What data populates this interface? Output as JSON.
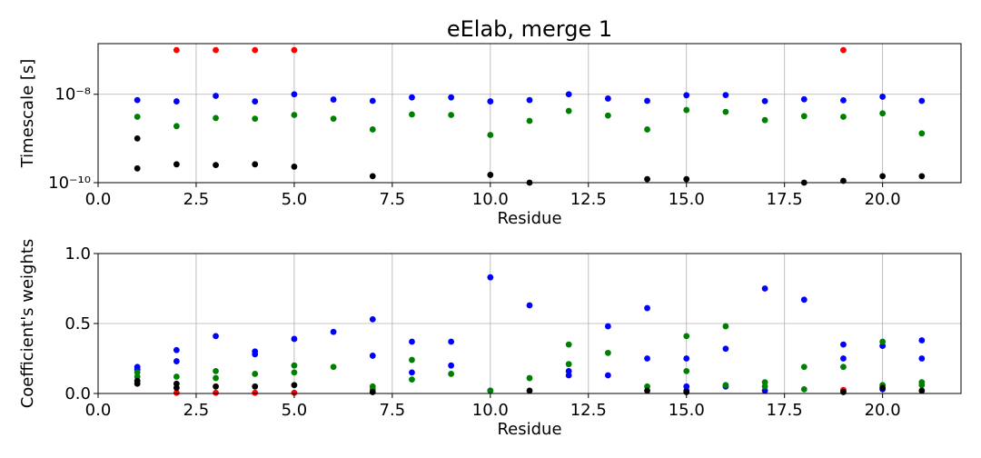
{
  "figure_title": "eElab, merge 1",
  "colors": {
    "red": "#ff0000",
    "blue": "#0000ff",
    "green": "#008000",
    "black": "#000000",
    "grid": "#b0b0b0"
  },
  "chart_data": [
    {
      "type": "scatter",
      "title": "eElab, merge 1",
      "xlabel": "Residue",
      "ylabel": "Timescale [s]",
      "xlim": [
        0,
        22
      ],
      "ylim": [
        1e-10,
        1.4e-07
      ],
      "yscale": "log",
      "grid": true,
      "xticks": [
        0.0,
        2.5,
        5.0,
        7.5,
        10.0,
        12.5,
        15.0,
        17.5,
        20.0
      ],
      "xtick_labels": [
        "0.0",
        "2.5",
        "5.0",
        "7.5",
        "10.0",
        "12.5",
        "15.0",
        "17.5",
        "20.0"
      ],
      "yticks": [
        1e-10,
        1e-08
      ],
      "ytick_labels": [
        "10⁻¹⁰",
        "10⁻⁸"
      ],
      "series": [
        {
          "color": "red",
          "x": [
            2,
            3,
            4,
            5,
            19
          ],
          "y": [
            1e-07,
            1e-07,
            1e-07,
            1e-07,
            1e-07
          ]
        },
        {
          "color": "blue",
          "x": [
            1,
            2,
            3,
            4,
            5,
            6,
            7,
            8,
            9,
            10,
            11,
            12,
            13,
            14,
            15,
            16,
            17,
            18,
            19,
            20,
            21
          ],
          "y": [
            7.4e-09,
            6.9e-09,
            9.2e-09,
            6.9e-09,
            1e-08,
            7.6e-09,
            7.1e-09,
            8.5e-09,
            8.5e-09,
            6.9e-09,
            7.4e-09,
            1e-08,
            8e-09,
            7.1e-09,
            9.5e-09,
            9.6e-09,
            7e-09,
            7.7e-09,
            7.3e-09,
            8.8e-09,
            7.1e-09
          ]
        },
        {
          "color": "green",
          "x": [
            1,
            2,
            3,
            4,
            5,
            6,
            7,
            8,
            9,
            10,
            11,
            12,
            13,
            14,
            15,
            16,
            17,
            18,
            19,
            20,
            21
          ],
          "y": [
            3.1e-09,
            1.9e-09,
            2.9e-09,
            2.8e-09,
            3.4e-09,
            2.8e-09,
            1.6e-09,
            3.5e-09,
            3.4e-09,
            1.2e-09,
            2.5e-09,
            4.2e-09,
            3.3e-09,
            1.6e-09,
            4.4e-09,
            4e-09,
            2.6e-09,
            3.2e-09,
            3.1e-09,
            3.7e-09,
            1.3e-09
          ]
        },
        {
          "color": "black",
          "x": [
            1,
            2,
            3,
            4,
            5,
            7,
            10,
            11,
            14,
            15,
            18,
            19,
            20,
            21
          ],
          "y": [
            2.1e-10,
            2.6e-10,
            2.5e-10,
            2.6e-10,
            2.3e-10,
            1.4e-10,
            1.5e-10,
            1e-10,
            1.2e-10,
            1.2e-10,
            1e-10,
            1.1e-10,
            1.4e-10,
            1.4e-10
          ]
        },
        {
          "color": "black",
          "x": [
            1
          ],
          "y": [
            1e-09
          ]
        }
      ]
    },
    {
      "type": "scatter",
      "title": "",
      "xlabel": "Residue",
      "ylabel": "Coefficient's weights",
      "xlim": [
        0,
        22
      ],
      "ylim": [
        0,
        1.0
      ],
      "yscale": "linear",
      "grid": true,
      "xticks": [
        0.0,
        2.5,
        5.0,
        7.5,
        10.0,
        12.5,
        15.0,
        17.5,
        20.0
      ],
      "xtick_labels": [
        "0.0",
        "2.5",
        "5.0",
        "7.5",
        "10.0",
        "12.5",
        "15.0",
        "17.5",
        "20.0"
      ],
      "yticks": [
        0.0,
        0.5,
        1.0
      ],
      "ytick_labels": [
        "0.0",
        "0.5",
        "1.0"
      ],
      "series": [
        {
          "color": "blue",
          "x": [
            1,
            1,
            2,
            2,
            3,
            4,
            4,
            5,
            6,
            7,
            7,
            8,
            8,
            9,
            9,
            10,
            10,
            11,
            12,
            12,
            13,
            13,
            14,
            14,
            15,
            15,
            15,
            16,
            16,
            17,
            17,
            18,
            19,
            19,
            20,
            20,
            21,
            21
          ],
          "y": [
            0.19,
            0.17,
            0.31,
            0.23,
            0.41,
            0.3,
            0.28,
            0.39,
            0.44,
            0.53,
            0.27,
            0.37,
            0.15,
            0.37,
            0.2,
            0.83,
            0.02,
            0.63,
            0.16,
            0.13,
            0.48,
            0.13,
            0.61,
            0.25,
            0.25,
            0.05,
            0.02,
            0.32,
            0.05,
            0.75,
            0.02,
            0.67,
            0.35,
            0.25,
            0.34,
            0.03,
            0.38,
            0.25
          ]
        },
        {
          "color": "green",
          "x": [
            1,
            1,
            2,
            3,
            3,
            4,
            5,
            5,
            6,
            7,
            7,
            8,
            8,
            9,
            10,
            11,
            12,
            12,
            13,
            14,
            15,
            15,
            16,
            16,
            17,
            17,
            18,
            18,
            19,
            20,
            20,
            21,
            21
          ],
          "y": [
            0.15,
            0.12,
            0.12,
            0.16,
            0.11,
            0.14,
            0.2,
            0.15,
            0.19,
            0.05,
            0.03,
            0.24,
            0.1,
            0.14,
            0.02,
            0.11,
            0.35,
            0.21,
            0.29,
            0.05,
            0.41,
            0.16,
            0.48,
            0.06,
            0.08,
            0.05,
            0.19,
            0.03,
            0.19,
            0.37,
            0.06,
            0.08,
            0.06
          ]
        },
        {
          "color": "red",
          "x": [
            2,
            3,
            4,
            5,
            19,
            19
          ],
          "y": [
            0.005,
            0.005,
            0.005,
            0.005,
            0.02,
            0.025
          ]
        },
        {
          "color": "black",
          "x": [
            1,
            1,
            2,
            2,
            3,
            4,
            5,
            7,
            11,
            14,
            15,
            19,
            20,
            21
          ],
          "y": [
            0.07,
            0.09,
            0.07,
            0.04,
            0.05,
            0.05,
            0.06,
            0.01,
            0.02,
            0.02,
            0.01,
            0.01,
            0.04,
            0.02
          ]
        }
      ]
    }
  ]
}
